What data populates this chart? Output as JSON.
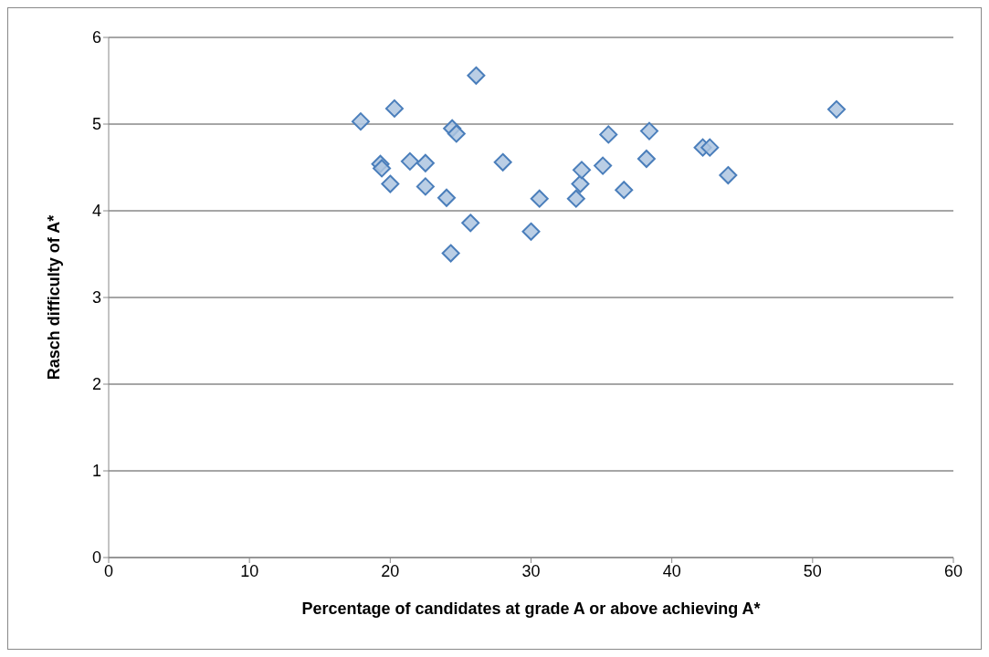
{
  "chart_data": {
    "type": "scatter",
    "xlabel": "Percentage of candidates at grade A or above achieving A*",
    "ylabel": "Rasch difficulty of A*",
    "x": [
      17.9,
      20.3,
      26.1,
      24.4,
      24.7,
      19.3,
      19.4,
      21.4,
      22.5,
      20.0,
      22.5,
      24.0,
      25.7,
      24.3,
      28.0,
      30.0,
      30.6,
      33.2,
      33.5,
      33.6,
      35.1,
      35.5,
      36.6,
      38.4,
      38.2,
      42.2,
      42.7,
      44.0,
      51.7
    ],
    "series": [
      {
        "color": "#4a7ebb",
        "values": [
          5.03,
          5.18,
          5.56,
          4.95,
          4.89,
          4.54,
          4.49,
          4.57,
          4.55,
          4.31,
          4.28,
          4.15,
          3.86,
          3.51,
          4.56,
          3.76,
          4.14,
          4.14,
          4.31,
          4.47,
          4.52,
          4.88,
          4.24,
          4.92,
          4.6,
          4.73,
          4.73,
          4.41,
          5.17
        ]
      }
    ],
    "xlim": [
      0,
      60
    ],
    "xticks": [
      0,
      10,
      20,
      30,
      40,
      50,
      60
    ],
    "ylim": [
      0,
      6
    ],
    "yticks": [
      0,
      1,
      2,
      3,
      4,
      5,
      6
    ],
    "grid": "y",
    "marker": "diamond"
  }
}
